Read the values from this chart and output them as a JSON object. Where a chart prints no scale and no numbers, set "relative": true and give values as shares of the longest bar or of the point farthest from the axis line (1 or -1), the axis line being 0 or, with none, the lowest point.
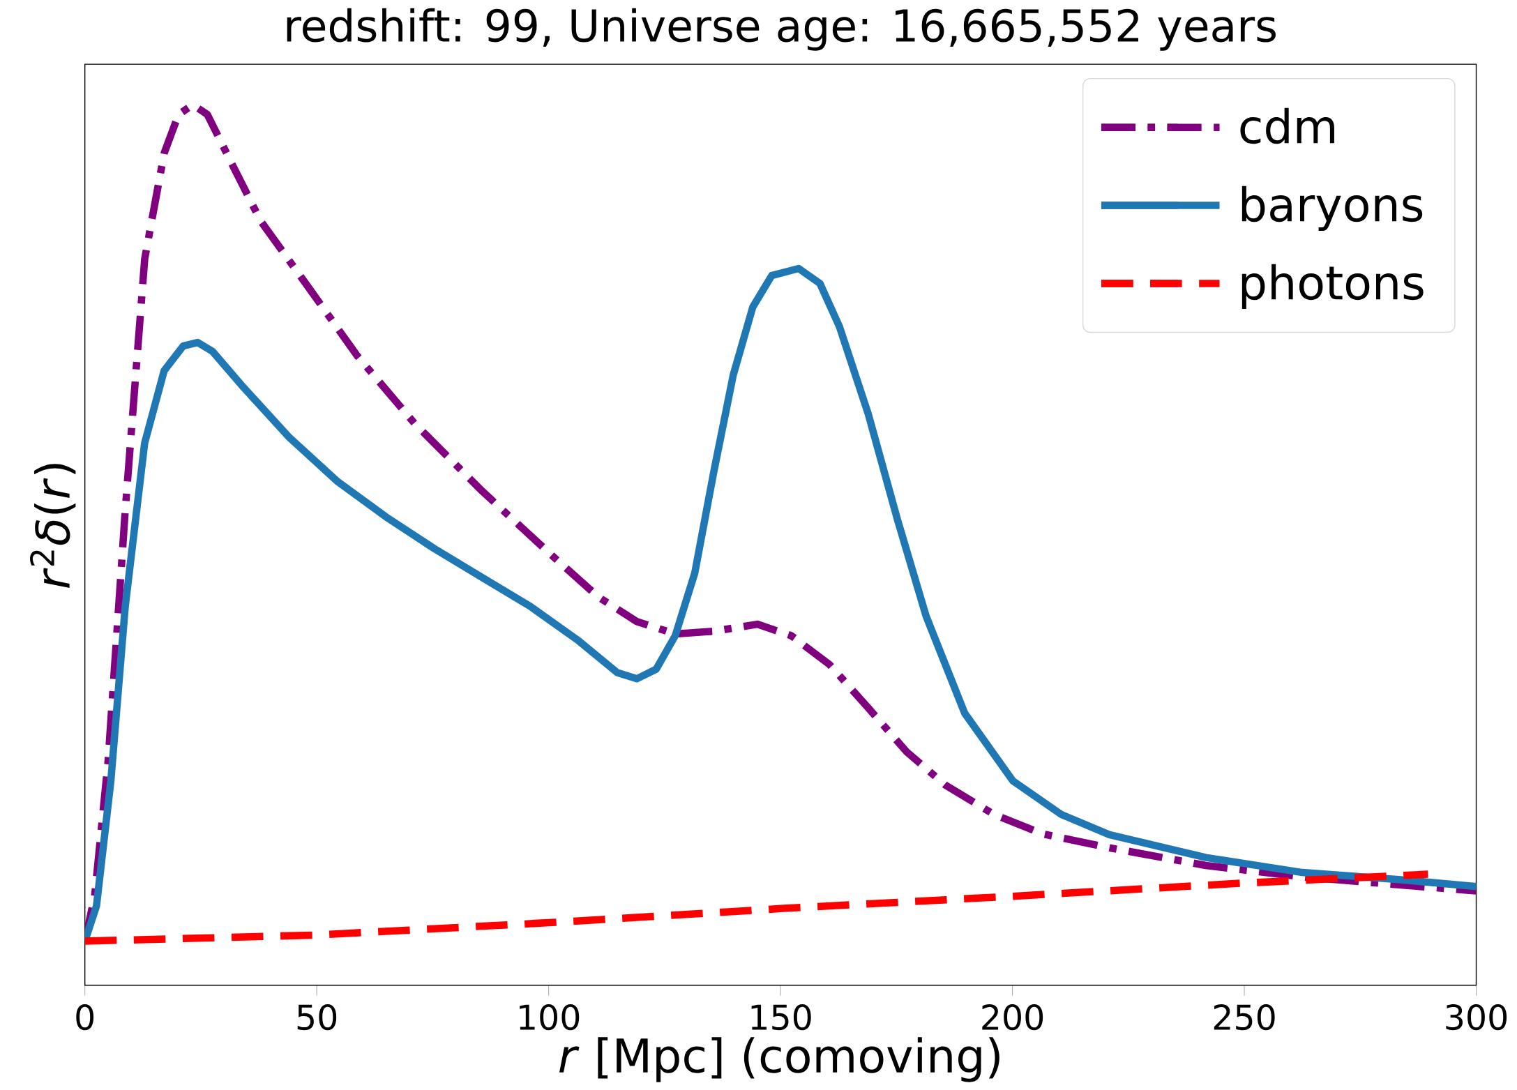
{
  "chart_data": {
    "type": "line",
    "title": "redshift: 99, Universe age: 16,665,552 years",
    "xlabel": "*r* [Mpc] (comoving)",
    "ylabel": "*r*$^{2}$*δ*(*r*)",
    "relative": true,
    "xlim": [
      0,
      300
    ],
    "xticks": [
      0,
      50,
      100,
      150,
      200,
      250,
      300
    ],
    "legend": "top right",
    "series": [
      {
        "name": "cdm",
        "color": "#800080",
        "line_style": "dashdot",
        "x": [
          0,
          2.1,
          5.0,
          8.7,
          12.9,
          17.1,
          20.2,
          23.3,
          26.4,
          31.6,
          37.9,
          48.3,
          58.7,
          71.1,
          85.7,
          100.3,
          110.7,
          119.0,
          127.3,
          135.6,
          145.0,
          152.3,
          160.6,
          168.9,
          177.2,
          185.6,
          196.0,
          206.4,
          220.9,
          241.7,
          262.5,
          283.3,
          300
        ],
        "values": [
          0.05,
          0.101,
          0.254,
          0.539,
          0.825,
          0.945,
          0.989,
          1.0,
          0.989,
          0.934,
          0.868,
          0.792,
          0.715,
          0.638,
          0.561,
          0.49,
          0.441,
          0.413,
          0.399,
          0.402,
          0.41,
          0.397,
          0.364,
          0.315,
          0.265,
          0.227,
          0.194,
          0.172,
          0.156,
          0.136,
          0.123,
          0.114,
          0.107
        ]
      },
      {
        "name": "baryons",
        "color": "#1f77b4",
        "line_style": "solid",
        "x": [
          0,
          2.5,
          5.6,
          8.7,
          12.9,
          17.1,
          21.2,
          24.3,
          27.5,
          33.7,
          44.1,
          54.5,
          64.9,
          75.3,
          85.7,
          96.1,
          106.5,
          114.8,
          119.0,
          123.2,
          127.3,
          131.5,
          135.6,
          139.8,
          144.0,
          148.1,
          153.9,
          158.5,
          162.7,
          168.9,
          175.2,
          181.4,
          189.7,
          200.1,
          210.5,
          220.9,
          241.7,
          262.5,
          283.3,
          300
        ],
        "values": [
          0.05,
          0.09,
          0.232,
          0.43,
          0.616,
          0.698,
          0.726,
          0.73,
          0.72,
          0.682,
          0.622,
          0.572,
          0.532,
          0.496,
          0.463,
          0.43,
          0.391,
          0.355,
          0.348,
          0.359,
          0.397,
          0.468,
          0.583,
          0.693,
          0.77,
          0.806,
          0.814,
          0.797,
          0.748,
          0.649,
          0.529,
          0.419,
          0.309,
          0.232,
          0.194,
          0.171,
          0.145,
          0.128,
          0.12,
          0.112
        ]
      },
      {
        "name": "photons",
        "color": "#ff0000",
        "line_style": "dashed",
        "x": [
          0,
          50,
          100,
          150,
          200,
          250,
          289.6
        ],
        "values": [
          0.05,
          0.057,
          0.071,
          0.087,
          0.101,
          0.116,
          0.126
        ]
      }
    ]
  }
}
